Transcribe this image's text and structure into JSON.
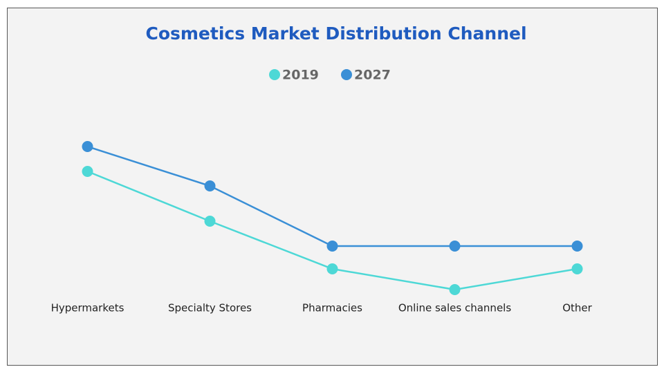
{
  "chart_data": {
    "type": "line",
    "title": "Cosmetics Market Distribution Channel",
    "categories": [
      "Hypermarkets",
      "Specialty Stores",
      "Pharmacies",
      "Online sales channels",
      "Other"
    ],
    "series": [
      {
        "name": "2019",
        "color": "#4dd8d6",
        "values": [
          32,
          20,
          8.5,
          3.5,
          8.5
        ]
      },
      {
        "name": "2027",
        "color": "#3a8fd6",
        "values": [
          38,
          28.5,
          14,
          14,
          14
        ]
      }
    ],
    "ylim": [
      0,
      50
    ]
  }
}
